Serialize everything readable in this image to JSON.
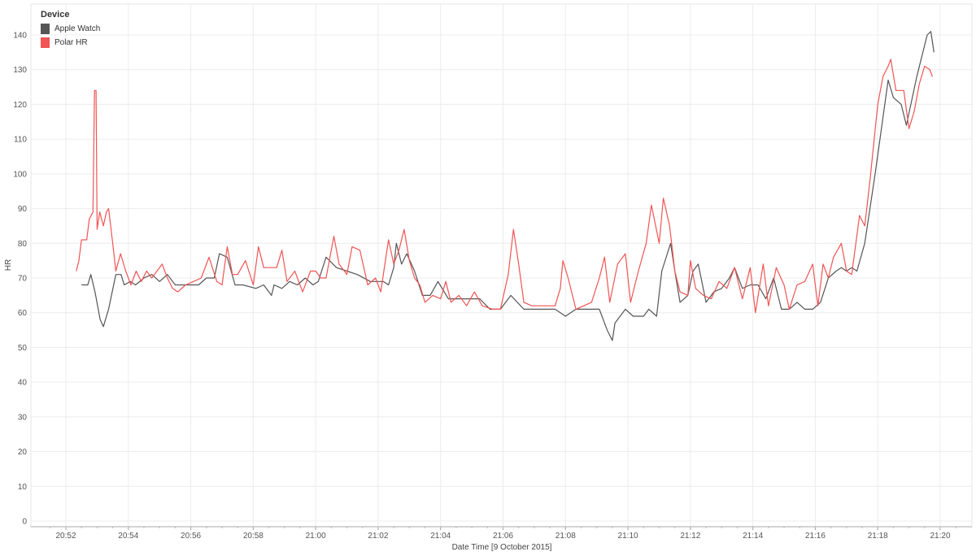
{
  "chart_data": {
    "type": "line",
    "title": "",
    "xlabel": "Date Time [9 October 2015]",
    "ylabel": "HR",
    "ylim": [
      0,
      145
    ],
    "xlim_minutes": [
      "20:51:00",
      "21:21:00"
    ],
    "yticks": [
      0,
      10,
      20,
      30,
      40,
      50,
      60,
      70,
      80,
      90,
      100,
      110,
      120,
      130,
      140
    ],
    "xticks": [
      "20:52",
      "20:54",
      "20:56",
      "20:58",
      "21:00",
      "21:02",
      "21:04",
      "21:06",
      "21:08",
      "21:10",
      "21:12",
      "21:14",
      "21:16",
      "21:18",
      "21:20"
    ],
    "grid": true,
    "legend": {
      "title": "Device",
      "position": "top-left",
      "items": [
        {
          "label": "Apple Watch",
          "color": "#555555"
        },
        {
          "label": "Polar HR",
          "color": "#f05454"
        }
      ]
    },
    "series": [
      {
        "name": "Apple Watch",
        "color": "#555555",
        "points": [
          [
            "20:52:30",
            68
          ],
          [
            "20:52:42",
            68
          ],
          [
            "20:52:48",
            71
          ],
          [
            "20:52:56",
            66
          ],
          [
            "20:53:06",
            58
          ],
          [
            "20:53:12",
            56
          ],
          [
            "20:53:22",
            61
          ],
          [
            "20:53:36",
            71
          ],
          [
            "20:53:46",
            71
          ],
          [
            "20:53:52",
            68
          ],
          [
            "20:54:04",
            69
          ],
          [
            "20:54:14",
            68
          ],
          [
            "20:54:30",
            70
          ],
          [
            "20:54:45",
            71
          ],
          [
            "20:55:00",
            69
          ],
          [
            "20:55:15",
            71
          ],
          [
            "20:55:30",
            68
          ],
          [
            "20:55:55",
            68
          ],
          [
            "20:56:15",
            68
          ],
          [
            "20:56:30",
            70
          ],
          [
            "20:56:45",
            70
          ],
          [
            "20:56:55",
            77
          ],
          [
            "20:57:10",
            76
          ],
          [
            "20:57:25",
            68
          ],
          [
            "20:57:40",
            68
          ],
          [
            "20:58:05",
            67
          ],
          [
            "20:58:20",
            68
          ],
          [
            "20:58:35",
            65
          ],
          [
            "20:58:40",
            68
          ],
          [
            "20:58:55",
            67
          ],
          [
            "20:59:10",
            69
          ],
          [
            "20:59:25",
            68
          ],
          [
            "20:59:40",
            70
          ],
          [
            "20:59:55",
            68
          ],
          [
            "21:00:05",
            69
          ],
          [
            "21:00:20",
            76
          ],
          [
            "21:00:40",
            73
          ],
          [
            "21:01:00",
            72
          ],
          [
            "21:01:20",
            71
          ],
          [
            "21:01:45",
            69
          ],
          [
            "21:02:10",
            69
          ],
          [
            "21:02:20",
            68
          ],
          [
            "21:02:30",
            73
          ],
          [
            "21:02:35",
            80
          ],
          [
            "21:02:45",
            74
          ],
          [
            "21:02:55",
            77
          ],
          [
            "21:03:10",
            72
          ],
          [
            "21:03:25",
            65
          ],
          [
            "21:03:40",
            65
          ],
          [
            "21:03:55",
            69
          ],
          [
            "21:04:15",
            64
          ],
          [
            "21:04:35",
            64
          ],
          [
            "21:04:55",
            64
          ],
          [
            "21:05:15",
            64
          ],
          [
            "21:05:35",
            61
          ],
          [
            "21:05:55",
            61
          ],
          [
            "21:06:15",
            65
          ],
          [
            "21:06:40",
            61
          ],
          [
            "21:07:00",
            61
          ],
          [
            "21:07:20",
            61
          ],
          [
            "21:07:40",
            61
          ],
          [
            "21:08:00",
            59
          ],
          [
            "21:08:20",
            61
          ],
          [
            "21:08:40",
            61
          ],
          [
            "21:09:05",
            61
          ],
          [
            "21:09:20",
            55
          ],
          [
            "21:09:30",
            52
          ],
          [
            "21:09:35",
            57
          ],
          [
            "21:09:55",
            61
          ],
          [
            "21:10:10",
            59
          ],
          [
            "21:10:30",
            59
          ],
          [
            "21:10:40",
            61
          ],
          [
            "21:10:55",
            59
          ],
          [
            "21:11:05",
            72
          ],
          [
            "21:11:22",
            80
          ],
          [
            "21:11:30",
            72
          ],
          [
            "21:11:40",
            63
          ],
          [
            "21:11:55",
            65
          ],
          [
            "21:12:05",
            72
          ],
          [
            "21:12:15",
            74
          ],
          [
            "21:12:30",
            63
          ],
          [
            "21:12:45",
            66
          ],
          [
            "21:13:00",
            67
          ],
          [
            "21:13:15",
            70
          ],
          [
            "21:13:25",
            73
          ],
          [
            "21:13:40",
            67
          ],
          [
            "21:13:55",
            68
          ],
          [
            "21:14:10",
            68
          ],
          [
            "21:14:25",
            64
          ],
          [
            "21:14:40",
            70
          ],
          [
            "21:14:55",
            61
          ],
          [
            "21:15:10",
            61
          ],
          [
            "21:15:25",
            63
          ],
          [
            "21:15:40",
            61
          ],
          [
            "21:15:55",
            61
          ],
          [
            "21:16:10",
            63
          ],
          [
            "21:16:25",
            70
          ],
          [
            "21:16:40",
            72
          ],
          [
            "21:16:50",
            73
          ],
          [
            "21:17:00",
            72
          ],
          [
            "21:17:10",
            73
          ],
          [
            "21:17:20",
            72
          ],
          [
            "21:17:35",
            80
          ],
          [
            "21:17:55",
            100
          ],
          [
            "21:18:20",
            127
          ],
          [
            "21:18:30",
            122
          ],
          [
            "21:18:45",
            120
          ],
          [
            "21:18:55",
            114
          ],
          [
            "21:19:15",
            128
          ],
          [
            "21:19:35",
            140
          ],
          [
            "21:19:42",
            141
          ],
          [
            "21:19:48",
            135
          ]
        ]
      },
      {
        "name": "Polar HR",
        "color": "#f05454",
        "points": [
          [
            "20:52:20",
            72
          ],
          [
            "20:52:25",
            75
          ],
          [
            "20:52:30",
            81
          ],
          [
            "20:52:40",
            81
          ],
          [
            "20:52:45",
            87
          ],
          [
            "20:52:52",
            89
          ],
          [
            "20:52:55",
            124
          ],
          [
            "20:52:58",
            124
          ],
          [
            "20:53:00",
            84
          ],
          [
            "20:53:05",
            89
          ],
          [
            "20:53:12",
            85
          ],
          [
            "20:53:18",
            89
          ],
          [
            "20:53:22",
            90
          ],
          [
            "20:53:30",
            80
          ],
          [
            "20:53:36",
            72
          ],
          [
            "20:53:45",
            77
          ],
          [
            "20:53:55",
            72
          ],
          [
            "20:54:05",
            68
          ],
          [
            "20:54:15",
            72
          ],
          [
            "20:54:25",
            69
          ],
          [
            "20:54:35",
            72
          ],
          [
            "20:54:45",
            70
          ],
          [
            "20:55:05",
            74
          ],
          [
            "20:55:15",
            70
          ],
          [
            "20:55:25",
            67
          ],
          [
            "20:55:35",
            66
          ],
          [
            "20:55:50",
            68
          ],
          [
            "20:56:05",
            69
          ],
          [
            "20:56:20",
            70
          ],
          [
            "20:56:35",
            76
          ],
          [
            "20:56:50",
            69
          ],
          [
            "20:57:00",
            68
          ],
          [
            "20:57:10",
            79
          ],
          [
            "20:57:20",
            71
          ],
          [
            "20:57:30",
            71
          ],
          [
            "20:57:45",
            75
          ],
          [
            "20:58:00",
            68
          ],
          [
            "20:58:10",
            79
          ],
          [
            "20:58:20",
            73
          ],
          [
            "20:58:30",
            73
          ],
          [
            "20:58:45",
            73
          ],
          [
            "20:58:55",
            78
          ],
          [
            "20:59:05",
            69
          ],
          [
            "20:59:20",
            72
          ],
          [
            "20:59:35",
            66
          ],
          [
            "20:59:50",
            72
          ],
          [
            "21:00:00",
            72
          ],
          [
            "21:00:10",
            70
          ],
          [
            "21:00:20",
            70
          ],
          [
            "21:00:35",
            82
          ],
          [
            "21:00:45",
            74
          ],
          [
            "21:01:00",
            71
          ],
          [
            "21:01:10",
            79
          ],
          [
            "21:01:25",
            78
          ],
          [
            "21:01:40",
            68
          ],
          [
            "21:01:55",
            70
          ],
          [
            "21:02:05",
            66
          ],
          [
            "21:02:20",
            81
          ],
          [
            "21:02:30",
            74
          ],
          [
            "21:02:40",
            78
          ],
          [
            "21:02:50",
            84
          ],
          [
            "21:03:00",
            75
          ],
          [
            "21:03:10",
            70
          ],
          [
            "21:03:20",
            68
          ],
          [
            "21:03:30",
            63
          ],
          [
            "21:03:45",
            65
          ],
          [
            "21:04:00",
            64
          ],
          [
            "21:04:10",
            69
          ],
          [
            "21:04:20",
            63
          ],
          [
            "21:04:35",
            65
          ],
          [
            "21:04:50",
            62
          ],
          [
            "21:05:05",
            66
          ],
          [
            "21:05:20",
            62
          ],
          [
            "21:05:40",
            61
          ],
          [
            "21:05:55",
            61
          ],
          [
            "21:06:10",
            71
          ],
          [
            "21:06:20",
            84
          ],
          [
            "21:06:30",
            74
          ],
          [
            "21:06:40",
            63
          ],
          [
            "21:06:55",
            62
          ],
          [
            "21:07:10",
            62
          ],
          [
            "21:07:25",
            62
          ],
          [
            "21:07:40",
            62
          ],
          [
            "21:07:50",
            67
          ],
          [
            "21:07:55",
            75
          ],
          [
            "21:08:05",
            70
          ],
          [
            "21:08:20",
            61
          ],
          [
            "21:08:35",
            62
          ],
          [
            "21:08:50",
            63
          ],
          [
            "21:09:05",
            70
          ],
          [
            "21:09:15",
            76
          ],
          [
            "21:09:25",
            63
          ],
          [
            "21:09:40",
            74
          ],
          [
            "21:09:55",
            77
          ],
          [
            "21:10:05",
            63
          ],
          [
            "21:10:20",
            72
          ],
          [
            "21:10:35",
            80
          ],
          [
            "21:10:45",
            91
          ],
          [
            "21:11:00",
            80
          ],
          [
            "21:11:08",
            93
          ],
          [
            "21:11:20",
            85
          ],
          [
            "21:11:30",
            72
          ],
          [
            "21:11:40",
            66
          ],
          [
            "21:11:55",
            65
          ],
          [
            "21:12:00",
            75
          ],
          [
            "21:12:10",
            67
          ],
          [
            "21:12:25",
            65
          ],
          [
            "21:12:40",
            64
          ],
          [
            "21:12:55",
            69
          ],
          [
            "21:13:10",
            67
          ],
          [
            "21:13:25",
            73
          ],
          [
            "21:13:40",
            64
          ],
          [
            "21:13:55",
            73
          ],
          [
            "21:14:05",
            60
          ],
          [
            "21:14:20",
            74
          ],
          [
            "21:14:30",
            62
          ],
          [
            "21:14:45",
            73
          ],
          [
            "21:15:00",
            68
          ],
          [
            "21:15:10",
            61
          ],
          [
            "21:15:25",
            68
          ],
          [
            "21:15:40",
            69
          ],
          [
            "21:15:55",
            74
          ],
          [
            "21:16:05",
            62
          ],
          [
            "21:16:15",
            74
          ],
          [
            "21:16:25",
            70
          ],
          [
            "21:16:35",
            76
          ],
          [
            "21:16:50",
            80
          ],
          [
            "21:17:00",
            72
          ],
          [
            "21:17:10",
            71
          ],
          [
            "21:17:25",
            88
          ],
          [
            "21:17:35",
            85
          ],
          [
            "21:17:45",
            98
          ],
          [
            "21:18:00",
            120
          ],
          [
            "21:18:10",
            128
          ],
          [
            "21:18:20",
            131
          ],
          [
            "21:18:25",
            133
          ],
          [
            "21:18:35",
            124
          ],
          [
            "21:18:50",
            124
          ],
          [
            "21:19:00",
            113
          ],
          [
            "21:19:10",
            118
          ],
          [
            "21:19:20",
            126
          ],
          [
            "21:19:30",
            131
          ],
          [
            "21:19:40",
            130
          ],
          [
            "21:19:45",
            128
          ]
        ]
      }
    ]
  }
}
